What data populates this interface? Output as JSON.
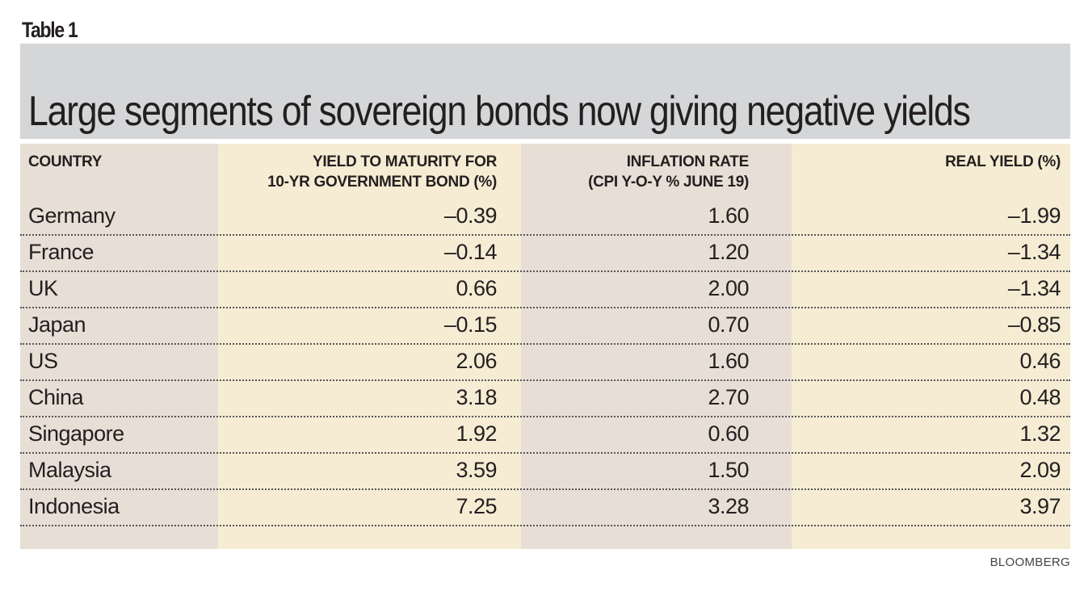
{
  "label": "Table 1",
  "title": "Large segments of sovereign bonds now giving negative yields",
  "source": "BLOOMBERG",
  "chart_data": {
    "type": "table",
    "title": "Large segments of sovereign bonds now giving negative yields",
    "columns": [
      {
        "line1": "COUNTRY",
        "line2": ""
      },
      {
        "line1": "YIELD TO MATURITY FOR",
        "line2": "10-YR GOVERNMENT BOND (%)"
      },
      {
        "line1": "INFLATION RATE",
        "line2": "(CPI Y-O-Y % JUNE 19)"
      },
      {
        "line1": "REAL YIELD (%)",
        "line2": ""
      }
    ],
    "rows": [
      [
        "Germany",
        "–0.39",
        "1.60",
        "–1.99"
      ],
      [
        "France",
        "–0.14",
        "1.20",
        "–1.34"
      ],
      [
        "UK",
        "0.66",
        "2.00",
        "–1.34"
      ],
      [
        "Japan",
        "–0.15",
        "0.70",
        "–0.85"
      ],
      [
        "US",
        "2.06",
        "1.60",
        "0.46"
      ],
      [
        "China",
        "3.18",
        "2.70",
        "0.48"
      ],
      [
        "Singapore",
        "1.92",
        "0.60",
        "1.32"
      ],
      [
        "Malaysia",
        "3.59",
        "1.50",
        "2.09"
      ],
      [
        "Indonesia",
        "7.25",
        "3.28",
        "3.97"
      ]
    ],
    "colors": {
      "beige": "#e7dfd5",
      "cream": "#f6ecd3",
      "banner": "#d5d6d8"
    }
  }
}
